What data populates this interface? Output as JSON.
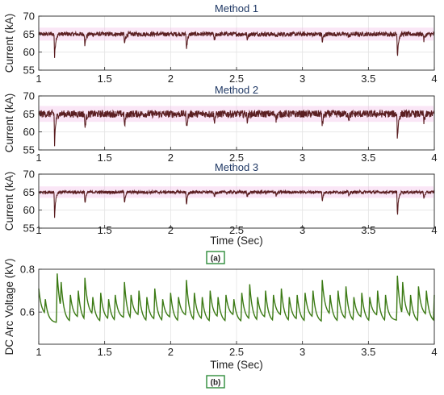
{
  "figure": {
    "panel_a_tag": "(a)",
    "panel_b_tag": "(b)"
  },
  "colors": {
    "current_trace": "#5b1f22",
    "current_band": "#f2b7e6",
    "voltage_trace": "#3b7a14",
    "title_text": "#1f3864",
    "tag_border": "#2e8b3a"
  },
  "chart_data": [
    {
      "type": "line",
      "title": "Method 1",
      "xlabel": "",
      "ylabel": "Current (kA)",
      "xlim": [
        1,
        4
      ],
      "ylim": [
        55,
        70
      ],
      "xticks": [
        1,
        1.5,
        2,
        2.5,
        3,
        3.5,
        4
      ],
      "xtick_labels": [
        "1",
        "1.5",
        "2",
        "2.5",
        "3",
        "3.5",
        "4"
      ],
      "yticks": [
        55,
        60,
        65,
        70
      ],
      "ytick_labels": [
        "55",
        "60",
        "65",
        "70"
      ],
      "grid": true,
      "baseline": 65,
      "noise_amplitude": 0.6,
      "dips": [
        {
          "x": 1.12,
          "y": 58.5
        },
        {
          "x": 1.35,
          "y": 61.5
        },
        {
          "x": 1.65,
          "y": 62.0
        },
        {
          "x": 2.12,
          "y": 60.5
        },
        {
          "x": 2.33,
          "y": 63.0
        },
        {
          "x": 2.58,
          "y": 63.5
        },
        {
          "x": 2.8,
          "y": 64.0
        },
        {
          "x": 3.15,
          "y": 62.5
        },
        {
          "x": 3.35,
          "y": 64.0
        },
        {
          "x": 3.72,
          "y": 58.5
        },
        {
          "x": 3.92,
          "y": 63.0
        }
      ]
    },
    {
      "type": "line",
      "title": "Method 2",
      "xlabel": "",
      "ylabel": "Current (kA)",
      "xlim": [
        1,
        4
      ],
      "ylim": [
        55,
        70
      ],
      "xticks": [
        1,
        1.5,
        2,
        2.5,
        3,
        3.5,
        4
      ],
      "xtick_labels": [
        "1",
        "1.5",
        "2",
        "2.5",
        "3",
        "3.5",
        "4"
      ],
      "yticks": [
        55,
        60,
        65,
        70
      ],
      "ytick_labels": [
        "55",
        "60",
        "65",
        "70"
      ],
      "grid": true,
      "baseline": 65,
      "noise_amplitude": 1.0,
      "dips": [
        {
          "x": 1.12,
          "y": 56.5
        },
        {
          "x": 1.35,
          "y": 60.5
        },
        {
          "x": 1.65,
          "y": 61.0
        },
        {
          "x": 2.12,
          "y": 60.5
        },
        {
          "x": 2.33,
          "y": 62.5
        },
        {
          "x": 2.58,
          "y": 63.0
        },
        {
          "x": 2.8,
          "y": 63.5
        },
        {
          "x": 3.15,
          "y": 61.5
        },
        {
          "x": 3.35,
          "y": 63.5
        },
        {
          "x": 3.72,
          "y": 57.5
        },
        {
          "x": 3.92,
          "y": 62.5
        }
      ]
    },
    {
      "type": "line",
      "title": "Method 3",
      "xlabel": "Time (Sec)",
      "ylabel": "Current (kA)",
      "xlim": [
        1,
        4
      ],
      "ylim": [
        55,
        70
      ],
      "xticks": [
        1,
        1.5,
        2,
        2.5,
        3,
        3.5,
        4
      ],
      "xtick_labels": [
        "1",
        "1.5",
        "2",
        "2.5",
        "3",
        "3.5",
        "4"
      ],
      "yticks": [
        55,
        60,
        65,
        70
      ],
      "ytick_labels": [
        "55",
        "60",
        "65",
        "70"
      ],
      "grid": true,
      "baseline": 65,
      "noise_amplitude": 0.4,
      "dips": [
        {
          "x": 1.12,
          "y": 58.0
        },
        {
          "x": 1.35,
          "y": 61.5
        },
        {
          "x": 1.65,
          "y": 62.0
        },
        {
          "x": 2.12,
          "y": 61.0
        },
        {
          "x": 2.33,
          "y": 63.5
        },
        {
          "x": 2.58,
          "y": 63.5
        },
        {
          "x": 2.8,
          "y": 64.0
        },
        {
          "x": 3.15,
          "y": 62.5
        },
        {
          "x": 3.35,
          "y": 64.0
        },
        {
          "x": 3.72,
          "y": 58.0
        },
        {
          "x": 3.92,
          "y": 63.0
        }
      ]
    },
    {
      "type": "line",
      "title": "",
      "xlabel": "Time (Sec)",
      "ylabel": "DC Arc Voltage (kV)",
      "xlim": [
        1,
        4
      ],
      "ylim": [
        0.45,
        0.8
      ],
      "xticks": [
        1,
        1.5,
        2,
        2.5,
        3,
        3.5,
        4
      ],
      "xtick_labels": [
        "1",
        "1.5",
        "2",
        "2.5",
        "3",
        "3.5",
        "4"
      ],
      "yticks": [
        0.6,
        0.8
      ],
      "ytick_labels": [
        "0.6",
        "0.8"
      ],
      "grid": true,
      "peaks": [
        {
          "x": 1.0,
          "y": 0.71
        },
        {
          "x": 1.05,
          "y": 0.66
        },
        {
          "x": 1.14,
          "y": 0.78
        },
        {
          "x": 1.17,
          "y": 0.74
        },
        {
          "x": 1.24,
          "y": 0.68
        },
        {
          "x": 1.3,
          "y": 0.7
        },
        {
          "x": 1.35,
          "y": 0.76
        },
        {
          "x": 1.41,
          "y": 0.67
        },
        {
          "x": 1.47,
          "y": 0.69
        },
        {
          "x": 1.53,
          "y": 0.66
        },
        {
          "x": 1.58,
          "y": 0.68
        },
        {
          "x": 1.65,
          "y": 0.74
        },
        {
          "x": 1.7,
          "y": 0.68
        },
        {
          "x": 1.76,
          "y": 0.7
        },
        {
          "x": 1.82,
          "y": 0.67
        },
        {
          "x": 1.88,
          "y": 0.71
        },
        {
          "x": 1.94,
          "y": 0.66
        },
        {
          "x": 2.0,
          "y": 0.69
        },
        {
          "x": 2.06,
          "y": 0.67
        },
        {
          "x": 2.12,
          "y": 0.75
        },
        {
          "x": 2.18,
          "y": 0.69
        },
        {
          "x": 2.24,
          "y": 0.67
        },
        {
          "x": 2.3,
          "y": 0.7
        },
        {
          "x": 2.36,
          "y": 0.67
        },
        {
          "x": 2.42,
          "y": 0.68
        },
        {
          "x": 2.48,
          "y": 0.66
        },
        {
          "x": 2.54,
          "y": 0.69
        },
        {
          "x": 2.6,
          "y": 0.73
        },
        {
          "x": 2.66,
          "y": 0.67
        },
        {
          "x": 2.72,
          "y": 0.7
        },
        {
          "x": 2.78,
          "y": 0.68
        },
        {
          "x": 2.84,
          "y": 0.71
        },
        {
          "x": 2.9,
          "y": 0.67
        },
        {
          "x": 2.96,
          "y": 0.68
        },
        {
          "x": 3.02,
          "y": 0.69
        },
        {
          "x": 3.08,
          "y": 0.7
        },
        {
          "x": 3.15,
          "y": 0.75
        },
        {
          "x": 3.21,
          "y": 0.68
        },
        {
          "x": 3.27,
          "y": 0.7
        },
        {
          "x": 3.33,
          "y": 0.72
        },
        {
          "x": 3.39,
          "y": 0.67
        },
        {
          "x": 3.45,
          "y": 0.69
        },
        {
          "x": 3.51,
          "y": 0.67
        },
        {
          "x": 3.57,
          "y": 0.7
        },
        {
          "x": 3.63,
          "y": 0.68
        },
        {
          "x": 3.72,
          "y": 0.77
        },
        {
          "x": 3.76,
          "y": 0.74
        },
        {
          "x": 3.82,
          "y": 0.68
        },
        {
          "x": 3.88,
          "y": 0.72
        },
        {
          "x": 3.94,
          "y": 0.7
        },
        {
          "x": 4.0,
          "y": 0.68
        }
      ],
      "valleys": [
        0.58,
        0.55,
        0.56,
        0.55,
        0.57,
        0.55
      ]
    }
  ]
}
